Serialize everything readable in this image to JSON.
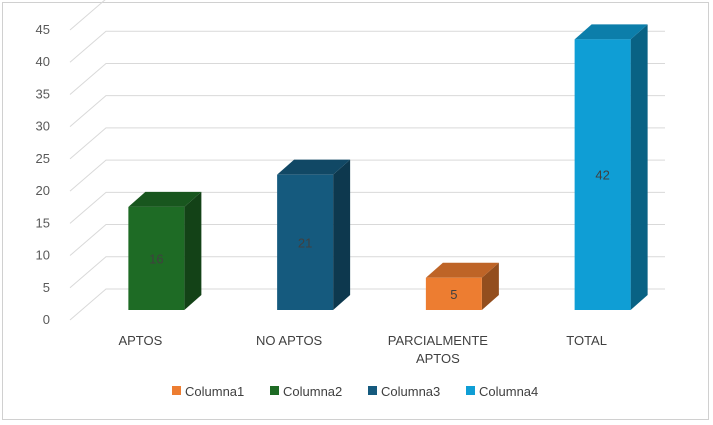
{
  "chart_data": {
    "type": "bar",
    "style": "3d-clustered-column",
    "categories": [
      [
        "APTOS"
      ],
      [
        "NO APTOS"
      ],
      [
        "PARCIALMENTE",
        "APTOS"
      ],
      [
        "TOTAL"
      ]
    ],
    "ylim": [
      0,
      45
    ],
    "yticks": [
      0,
      5,
      10,
      15,
      20,
      25,
      30,
      35,
      40,
      45
    ],
    "grid": true,
    "legend_position": "bottom",
    "series": [
      {
        "name": "Columna1",
        "color": "#ed7d31",
        "values": [
          null,
          null,
          5,
          null
        ]
      },
      {
        "name": "Columna2",
        "color": "#1e6b25",
        "values": [
          16,
          null,
          null,
          null
        ]
      },
      {
        "name": "Columna3",
        "color": "#155a7e",
        "values": [
          null,
          21,
          null,
          null
        ]
      },
      {
        "name": "Columna4",
        "color": "#0f9ed5",
        "values": [
          null,
          null,
          null,
          42
        ]
      }
    ]
  }
}
